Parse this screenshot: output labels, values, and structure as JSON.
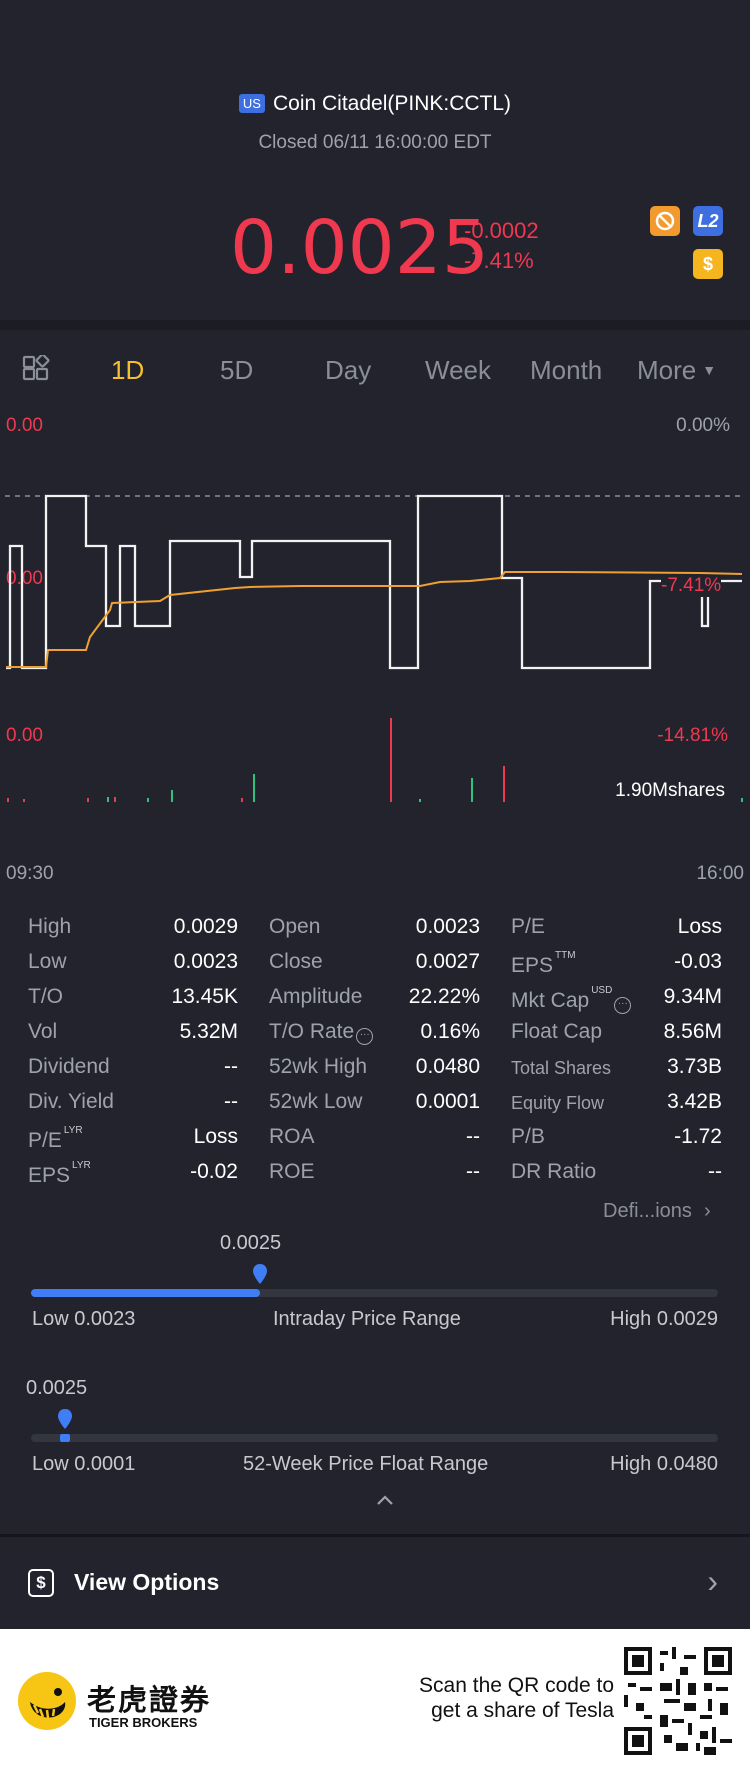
{
  "header": {
    "market_badge": "US",
    "title": "Coin Citadel(PINK:CCTL)",
    "status": "Closed 06/11 16:00:00 EDT",
    "price": "0.0025",
    "change": "-0.0002",
    "change_pct": "-7.41%",
    "icons": [
      "no-trade-icon",
      "level2-icon",
      "dollar-icon"
    ],
    "l2_label": "L2",
    "dollar_label": "$"
  },
  "tabs": {
    "items": [
      "1D",
      "5D",
      "Day",
      "Week",
      "Month",
      "More"
    ],
    "active": "1D"
  },
  "chart": {
    "left_top": "0.00",
    "left_mid": "0.00",
    "left_bottom": "0.00",
    "right_top": "0.00%",
    "right_mid": "-7.41%",
    "right_bottom": "-14.81%",
    "volume_label": "1.90Mshares",
    "time_start": "09:30",
    "time_end": "16:00"
  },
  "chart_data": {
    "type": "line",
    "x": [
      "09:30",
      "16:00"
    ],
    "series": [],
    "ylim_pct": [
      -14.81,
      0.0
    ],
    "reference_line_pct": 0.0,
    "volume_max_label": "1.90Mshares"
  },
  "stats": {
    "col1": [
      {
        "label": "High",
        "value": "0.0029"
      },
      {
        "label": "Low",
        "value": "0.0023"
      },
      {
        "label": "T/O",
        "value": "13.45K"
      },
      {
        "label": "Vol",
        "value": "5.32M"
      },
      {
        "label": "Dividend",
        "value": "--"
      },
      {
        "label": "Div. Yield",
        "value": "--"
      },
      {
        "label": "P/E",
        "sup": "LYR",
        "value": "Loss"
      },
      {
        "label": "EPS",
        "sup": "LYR",
        "value": "-0.02"
      }
    ],
    "col2": [
      {
        "label": "Open",
        "value": "0.0023"
      },
      {
        "label": "Close",
        "value": "0.0027"
      },
      {
        "label": "Amplitude",
        "value": "22.22%"
      },
      {
        "label": "T/O Rate",
        "value": "0.16%"
      },
      {
        "label": "52wk High",
        "value": "0.0480"
      },
      {
        "label": "52wk Low",
        "value": "0.0001"
      },
      {
        "label": "ROA",
        "value": "--"
      },
      {
        "label": "ROE",
        "value": "--"
      }
    ],
    "col3": [
      {
        "label": "P/E",
        "value": "Loss"
      },
      {
        "label": "EPS",
        "sup": "TTM",
        "value": "-0.03"
      },
      {
        "label": "Mkt Cap",
        "sup": "USD",
        "value": "9.34M"
      },
      {
        "label": "Float Cap",
        "value": "8.56M"
      },
      {
        "label": "Total Shares",
        "value": "3.73B"
      },
      {
        "label": "Equity Flow",
        "value": "3.42B"
      },
      {
        "label": "P/B",
        "value": "-1.72"
      },
      {
        "label": "DR Ratio",
        "value": "--"
      }
    ],
    "definitions_link": "Defi...ions"
  },
  "intraday_range": {
    "current": "0.0025",
    "low_label": "Low 0.0023",
    "title": "Intraday Price Range",
    "high_label": "High 0.0029",
    "position_fraction": 0.333
  },
  "week52_range": {
    "current": "0.0025",
    "low_label": "Low 0.0001",
    "title": "52-Week Price Float Range",
    "high_label": "High 0.0480",
    "position_fraction": 0.05
  },
  "options": {
    "label": "View Options"
  },
  "footer": {
    "brand_cn": "老虎證券",
    "brand_en": "TIGER BROKERS",
    "promo_line1": "Scan the QR code to",
    "promo_line2": "get a share of Tesla"
  },
  "colors": {
    "background": "#22232d",
    "down_red": "#f0384f",
    "active_tab": "#f5c02f",
    "accent_blue": "#3f7ef5",
    "avg_line": "#f0a030"
  }
}
